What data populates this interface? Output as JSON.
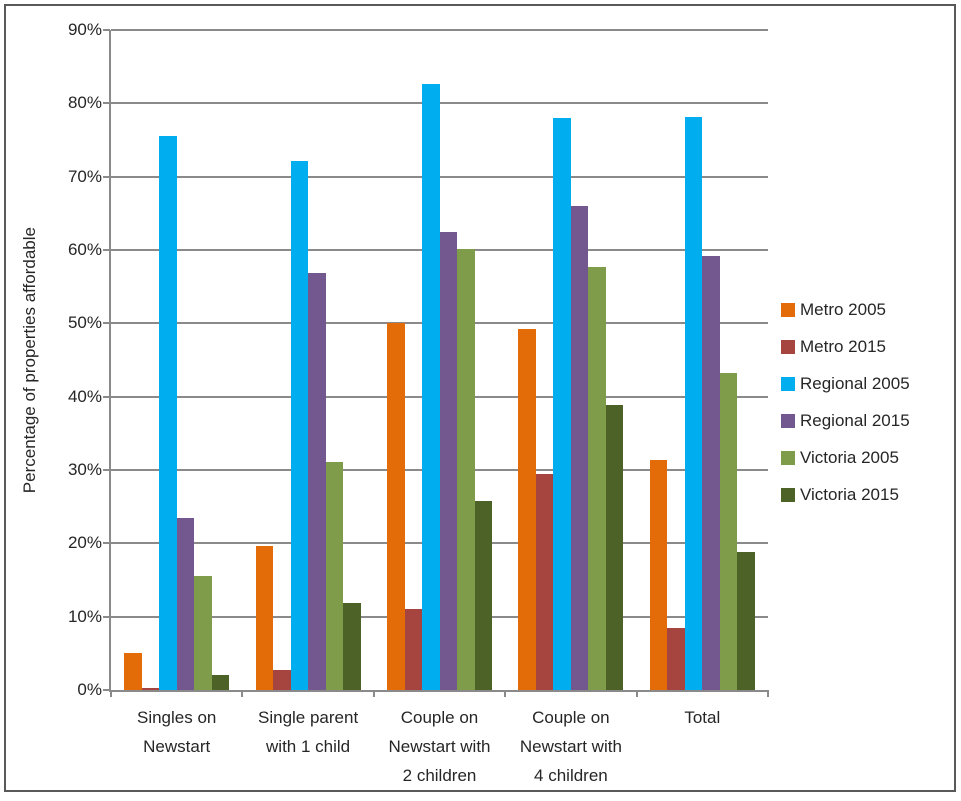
{
  "chart_data": {
    "type": "bar",
    "title": "",
    "xlabel": "",
    "ylabel": "Percentage of properties affordable",
    "ylim": [
      0,
      90
    ],
    "ytick_step": 10,
    "ytick_suffix": "%",
    "grid": true,
    "legend_position": "right",
    "categories": [
      "Singles on\nNewstart",
      "Single parent\nwith 1 child",
      "Couple on\nNewstart with\n2 children",
      "Couple on\nNewstart with\n4 children",
      "Total"
    ],
    "series": [
      {
        "name": "Metro 2005",
        "color": "#E36C09",
        "values": [
          5.1,
          19.7,
          50.1,
          49.2,
          31.3
        ]
      },
      {
        "name": "Metro 2015",
        "color": "#A6453F",
        "values": [
          0.3,
          2.7,
          11.1,
          29.4,
          8.4
        ]
      },
      {
        "name": "Regional 2005",
        "color": "#00AEEF",
        "values": [
          75.5,
          72.2,
          82.6,
          78.0,
          78.2
        ]
      },
      {
        "name": "Regional 2015",
        "color": "#72588F",
        "values": [
          23.4,
          56.8,
          62.4,
          66.0,
          59.2
        ]
      },
      {
        "name": "Victoria 2005",
        "color": "#7E9C49",
        "values": [
          15.5,
          31.1,
          60.1,
          57.7,
          43.2
        ]
      },
      {
        "name": "Victoria 2015",
        "color": "#4C6227",
        "values": [
          2.0,
          11.8,
          25.8,
          38.8,
          18.8
        ]
      }
    ]
  },
  "style": {
    "gridline_color": "#8a8a8a",
    "axis_color": "#8a8a8a",
    "text_color": "#262626",
    "border_color": "#595959",
    "background": "#ffffff"
  }
}
